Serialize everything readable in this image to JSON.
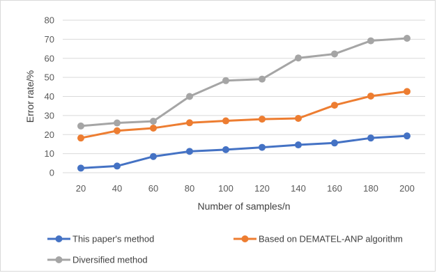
{
  "chart_data": {
    "type": "line",
    "title": "",
    "xlabel": "Number of samples/n",
    "ylabel": "Error rate/%",
    "categories": [
      "20",
      "40",
      "60",
      "80",
      "100",
      "120",
      "140",
      "160",
      "180",
      "200"
    ],
    "yticks": [
      "0",
      "10",
      "20",
      "30",
      "40",
      "50",
      "60",
      "70",
      "80"
    ],
    "ylim": [
      0,
      80
    ],
    "grid": true,
    "legend_position": "bottom",
    "series": [
      {
        "name": "This paper's method",
        "color": "#4472c4",
        "values": [
          2.4,
          3.5,
          8.5,
          11.2,
          12.1,
          13.3,
          14.6,
          15.6,
          18.2,
          19.3
        ]
      },
      {
        "name": "Based on DEMATEL-ANP algorithm",
        "color": "#ed7d31",
        "values": [
          18.2,
          22.0,
          23.4,
          26.2,
          27.2,
          28.1,
          28.5,
          35.4,
          40.2,
          42.6
        ]
      },
      {
        "name": "Diversified method",
        "color": "#a5a5a5",
        "values": [
          24.5,
          26.1,
          27.0,
          40.0,
          48.3,
          49.1,
          60.2,
          62.3,
          69.2,
          70.5
        ]
      }
    ]
  }
}
